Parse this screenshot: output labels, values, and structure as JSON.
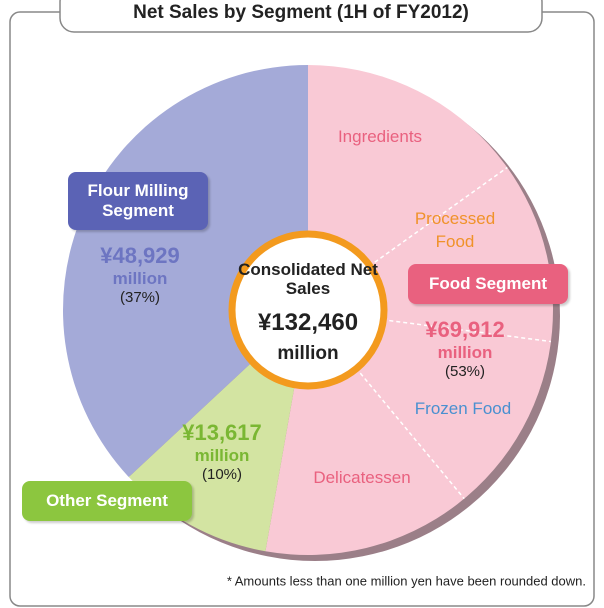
{
  "chart_data": {
    "type": "pie",
    "title": "Net Sales by Segment (1H of FY2012)",
    "categories": [
      "Food Segment",
      "Other Segment",
      "Flour Milling Segment"
    ],
    "values": [
      69912,
      13617,
      48929
    ],
    "value_labels": [
      "¥69,912",
      "¥13,617",
      "¥48,929"
    ],
    "unit": "million",
    "percents": [
      53,
      10,
      37
    ],
    "percent_labels": [
      "(53%)",
      "(10%)",
      "(37%)"
    ],
    "colors": [
      "#f9c9d5",
      "#d3e4a2",
      "#a4aad8"
    ],
    "label_colors": [
      "#e9617f",
      "#8cc63f",
      "#5b63b5"
    ],
    "value_colors": [
      "#e9617f",
      "#7ab733",
      "#6d75c2"
    ],
    "sub_segments": [
      "Ingredients",
      "Processed Food",
      "Frozen Food",
      "Delicatessen"
    ],
    "center_label": "Consolidated Net Sales",
    "center_value": "¥132,460",
    "center_unit": "million",
    "footnote": "* Amounts less than one million yen have been rounded down."
  }
}
